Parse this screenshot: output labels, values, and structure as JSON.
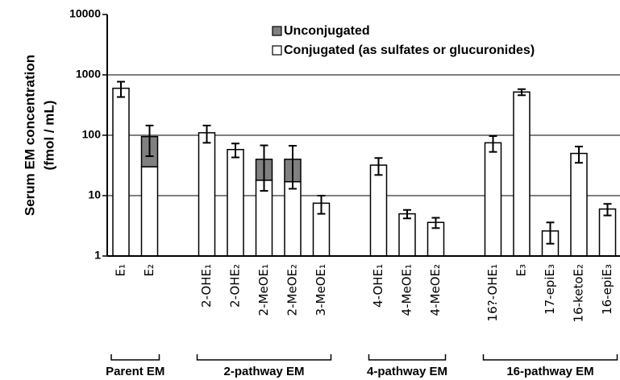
{
  "chart_data": {
    "type": "bar",
    "stacked": true,
    "log_y": true,
    "grid": true,
    "ylabel": [
      "Serum EM concentration",
      "(fmol / mL)"
    ],
    "categories": [
      "E₁",
      "E₂",
      null,
      "2-OHE₁",
      "2-OHE₂",
      "2-MeOE₁",
      "2-MeOE₂",
      "3-MeOE₁",
      null,
      "4-OHE₁",
      "4-MeOE₁",
      "4-MeOE₂",
      null,
      "16?-OHE₁",
      "E₃",
      "17-epiE₃",
      "16-ketoE₂",
      "16-epiE₃"
    ],
    "series": [
      {
        "name": "Conjugated  (as sulfates or glucuronides)",
        "color": "#ffffff",
        "values": [
          600,
          30,
          null,
          110,
          58,
          18,
          17,
          7.5,
          null,
          32,
          5,
          3.6,
          null,
          75,
          520,
          2.6,
          50,
          6
        ]
      },
      {
        "name": "Unconjugated",
        "color": "#808080",
        "values": [
          null,
          65,
          null,
          null,
          null,
          22,
          23,
          null,
          null,
          null,
          null,
          null,
          null,
          null,
          null,
          null,
          null,
          null
        ]
      }
    ],
    "errors": [
      170,
      50,
      null,
      35,
      15,
      28,
      27,
      2.5,
      null,
      10,
      0.8,
      0.7,
      null,
      22,
      60,
      1,
      15,
      1.3
    ],
    "groups": [
      "Parent EM",
      "2-pathway EM",
      "4-pathway EM",
      "16-pathway EM"
    ],
    "ylim": [
      1,
      10000
    ],
    "yticks": [
      1,
      10,
      100,
      1000,
      10000
    ]
  }
}
